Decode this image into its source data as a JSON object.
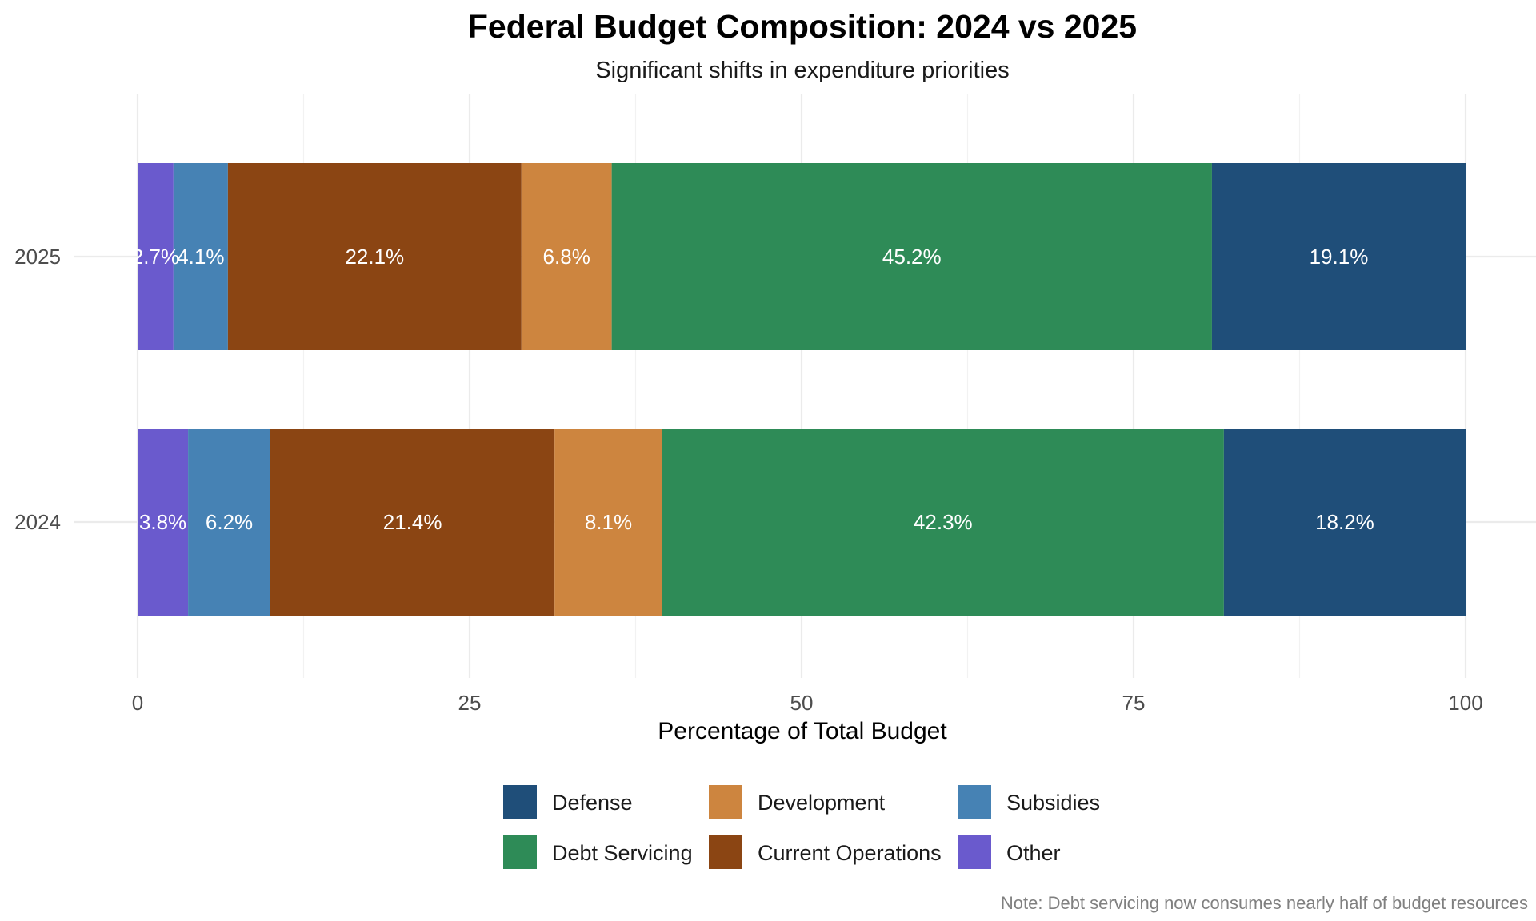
{
  "chart_data": {
    "type": "bar",
    "orientation": "horizontal",
    "stacked": true,
    "title": "Federal Budget Composition: 2024 vs 2025",
    "subtitle": "Significant shifts in expenditure priorities",
    "xlabel": "Percentage of Total Budget",
    "ylabel": "",
    "xlim": [
      0,
      100
    ],
    "x_ticks": [
      0,
      25,
      50,
      75,
      100
    ],
    "grid": true,
    "legend_position": "bottom",
    "caption": "Note: Debt servicing now consumes nearly half of budget resources",
    "categories": [
      "2025",
      "2024"
    ],
    "stack_order": [
      "Other",
      "Subsidies",
      "Current Operations",
      "Development",
      "Debt Servicing",
      "Defense"
    ],
    "legend_order": [
      "Defense",
      "Development",
      "Subsidies",
      "Debt Servicing",
      "Current Operations",
      "Other"
    ],
    "series": [
      {
        "name": "Other",
        "color": "#6A5ACD",
        "values": [
          2.7,
          3.8
        ]
      },
      {
        "name": "Subsidies",
        "color": "#4682B4",
        "values": [
          4.1,
          6.2
        ]
      },
      {
        "name": "Current Operations",
        "color": "#8B4513",
        "values": [
          22.1,
          21.4
        ]
      },
      {
        "name": "Development",
        "color": "#CD853F",
        "values": [
          6.8,
          8.1
        ]
      },
      {
        "name": "Debt Servicing",
        "color": "#2E8B57",
        "values": [
          45.2,
          42.3
        ]
      },
      {
        "name": "Defense",
        "color": "#1F4E79",
        "values": [
          19.1,
          18.2
        ]
      }
    ],
    "value_label_suffix": "%"
  }
}
